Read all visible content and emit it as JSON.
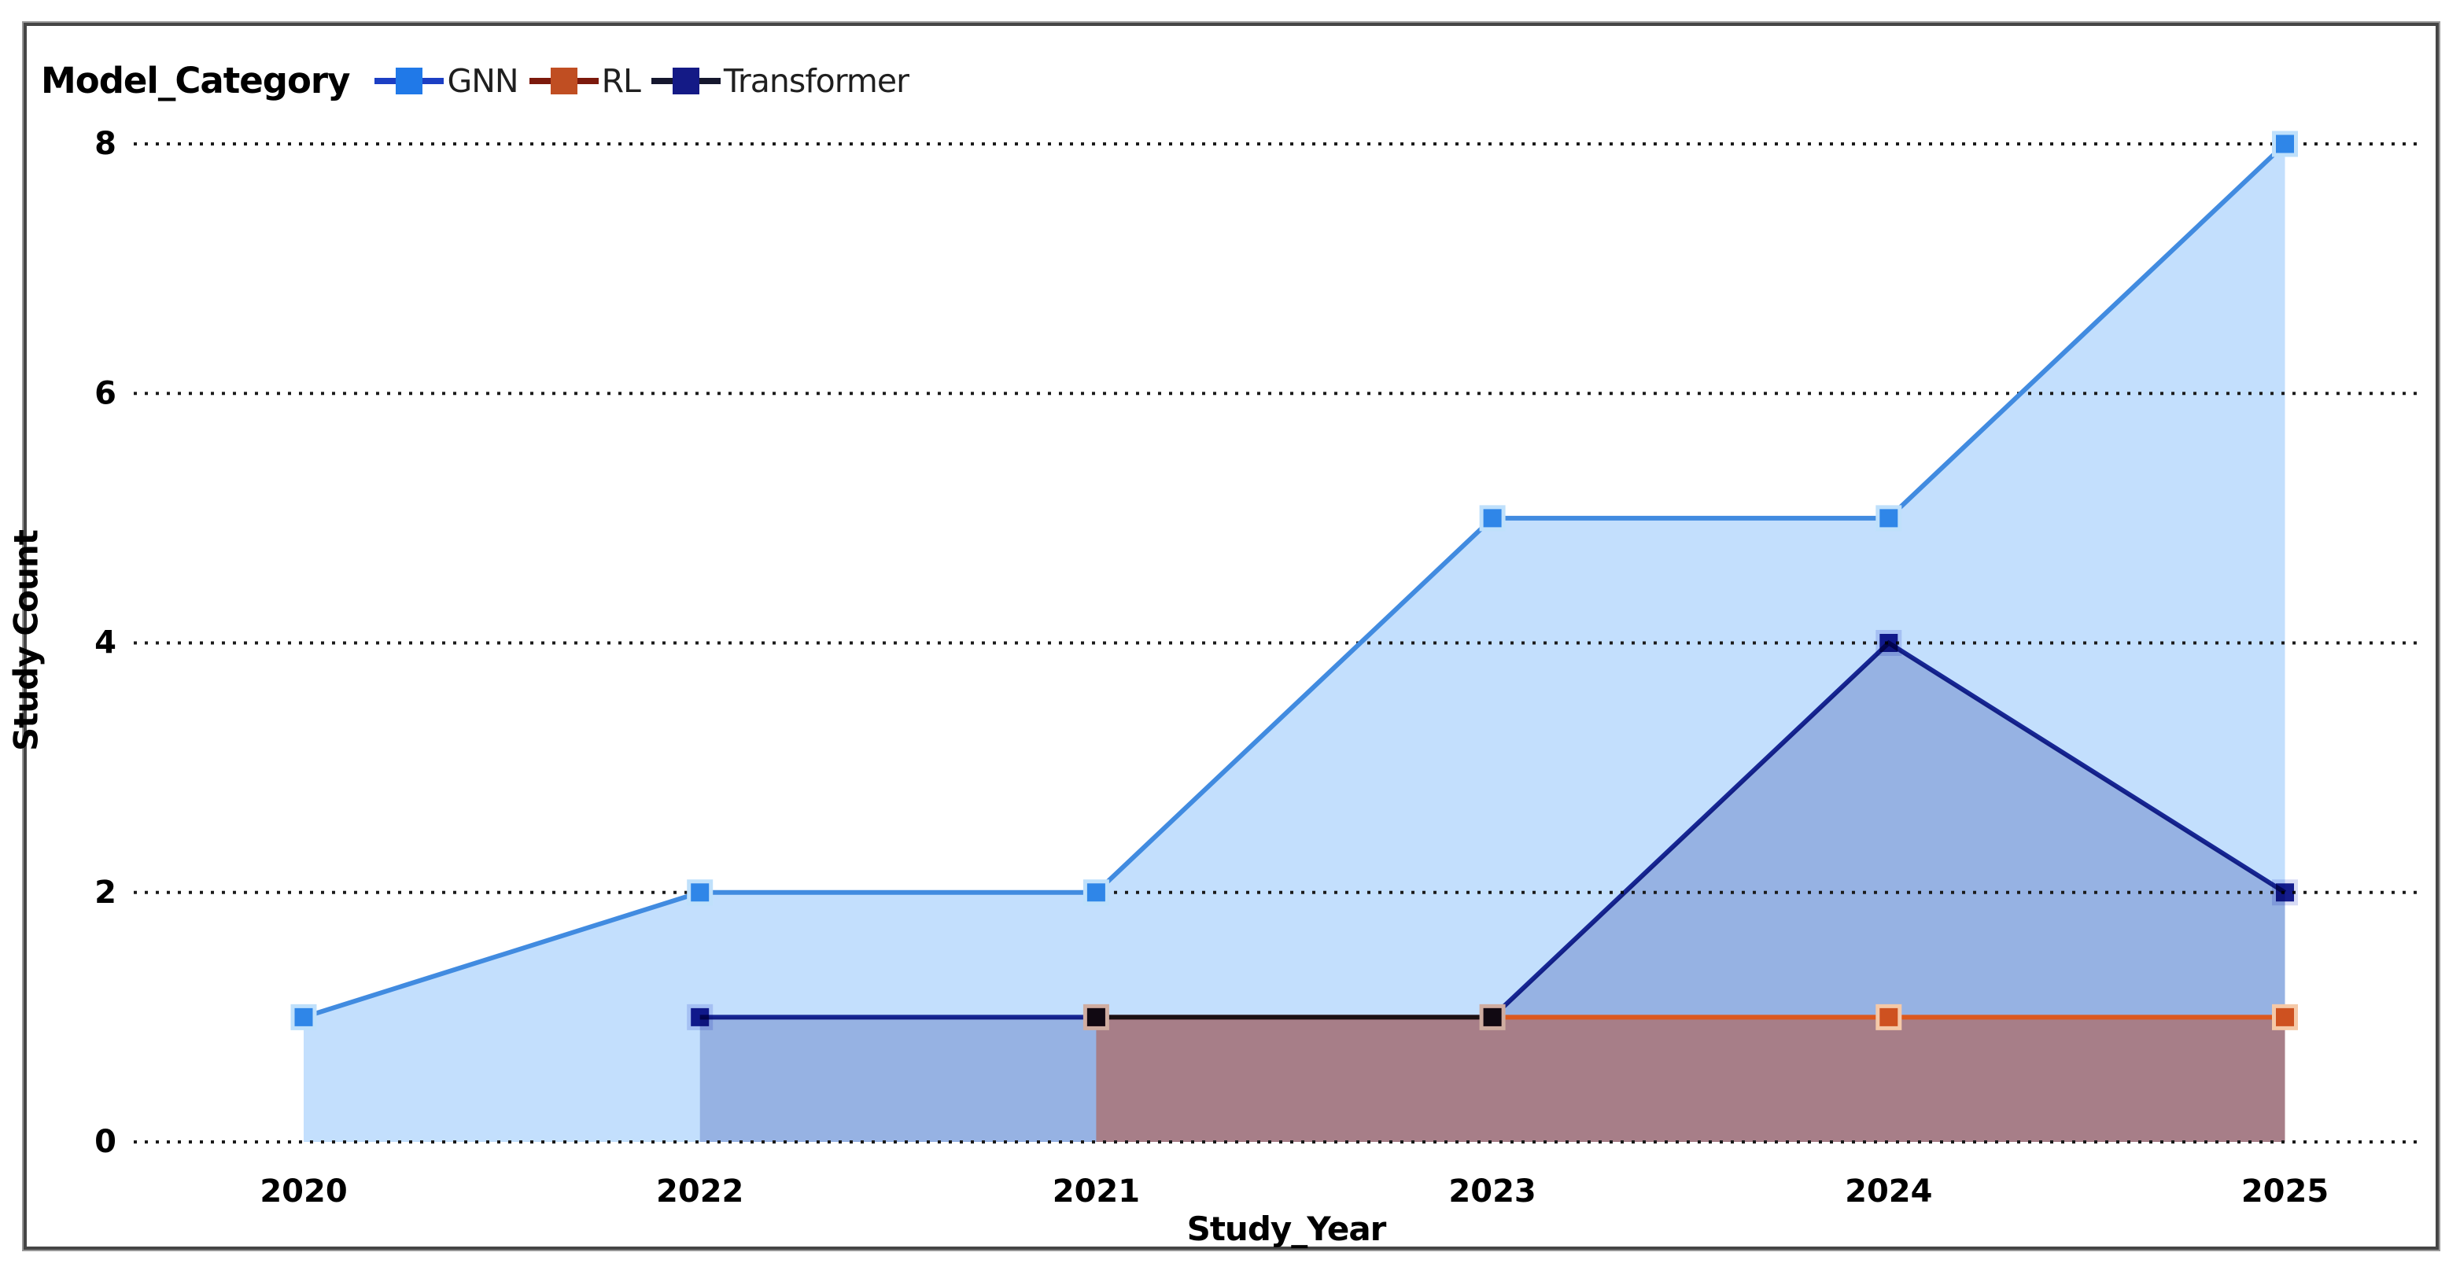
{
  "chart_data": {
    "type": "area",
    "legend_title": "Model_Category",
    "legend_position": "top-left",
    "xlabel": "Study_Year",
    "ylabel": "Study Count",
    "categories": [
      "2020",
      "2022",
      "2021",
      "2023",
      "2024",
      "2025"
    ],
    "yticks": [
      0,
      2,
      4,
      6,
      8
    ],
    "ylim": [
      0,
      8
    ],
    "grid": "dotted horizontal",
    "series": [
      {
        "name": "GNN",
        "values": [
          1,
          2,
          2,
          5,
          5,
          8
        ],
        "color_line": "#418BE0",
        "color_fill": "#C3DFFD",
        "color_marker": "#2F86E8",
        "marker_halo": "#BFE0FB",
        "legend_swatch_fill": "#2079E8",
        "legend_swatch_line": "#1C3FC4"
      },
      {
        "name": "RL",
        "values": [
          null,
          null,
          1,
          1,
          1,
          1
        ],
        "color_line": "#DC581E",
        "color_fill": "rgba(189,62,25,0.45)",
        "color_marker": "#CE5120",
        "marker_halo": "#F5C9A8",
        "legend_swatch_fill": "#C04E22",
        "legend_swatch_line": "#7C190C"
      },
      {
        "name": "Transformer",
        "values": [
          null,
          1,
          1,
          1,
          4,
          2
        ],
        "color_line": "#1E2C96",
        "color_fill": "rgba(30,60,160,0.27)",
        "color_marker": "#151C8C",
        "marker_halo": "#D8DCF5",
        "legend_swatch_fill": "#141A86",
        "legend_swatch_line": "#15172E",
        "line_blend": "multiply"
      }
    ],
    "fill_draw_order": [
      "GNN",
      "Transformer",
      "RL"
    ],
    "line_draw_order": [
      "GNN",
      "RL",
      "Transformer"
    ]
  }
}
